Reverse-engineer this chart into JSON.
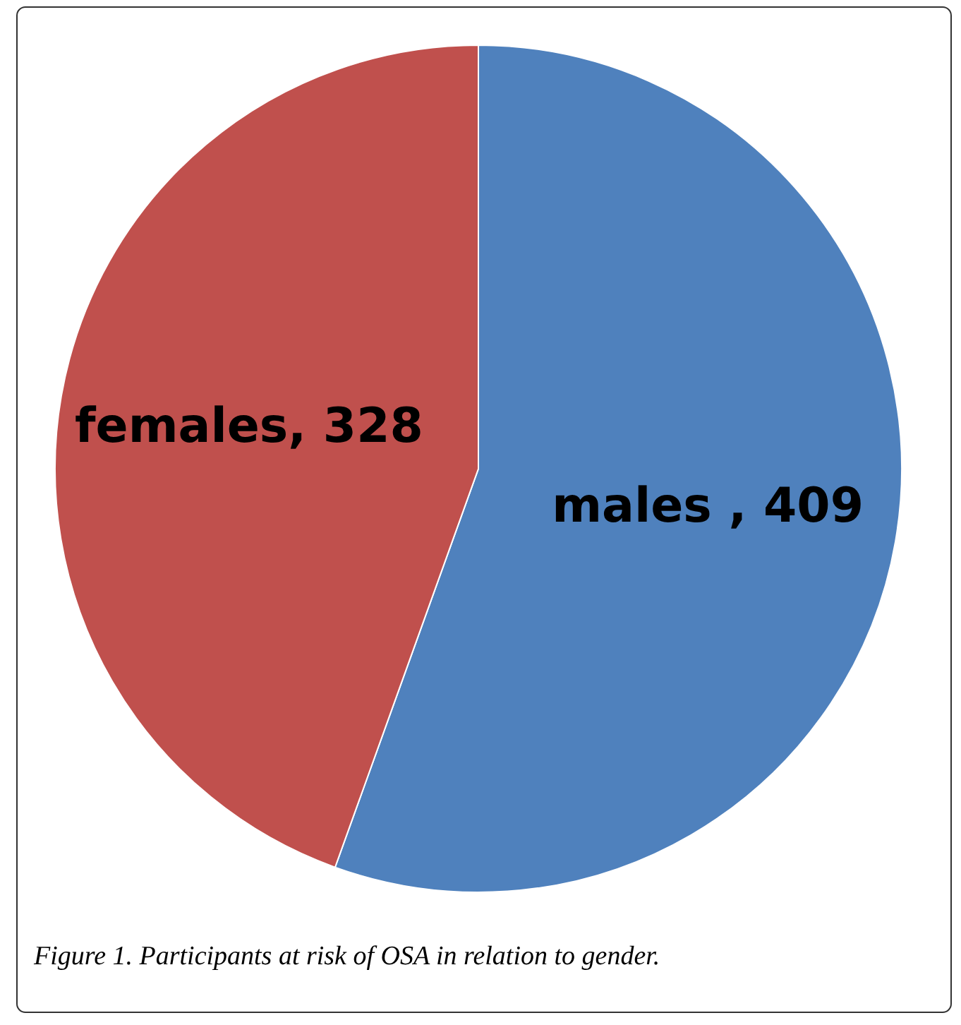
{
  "chart_data": {
    "type": "pie",
    "categories": [
      null,
      null
    ],
    "values": [
      409,
      328
    ],
    "colors": [
      "#4f81bd",
      "#c0504d"
    ],
    "value_labels": [
      "males , 409",
      "females, 328"
    ],
    "annotations": [
      "Figure 1. Participants at risk of OSA in relation to gender."
    ]
  }
}
